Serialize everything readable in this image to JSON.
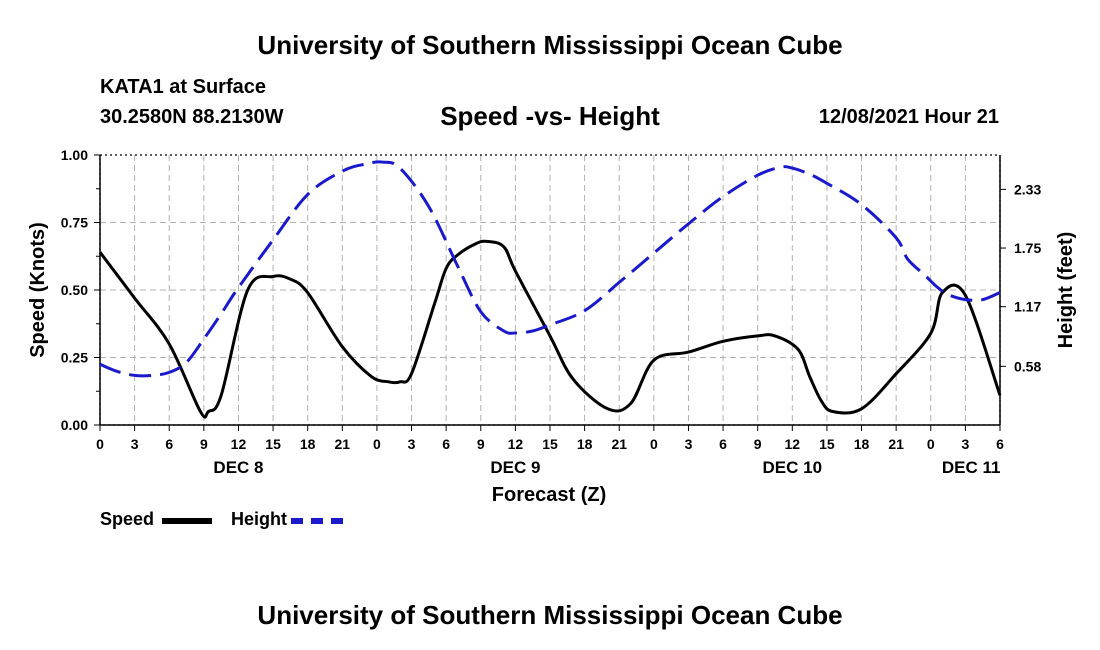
{
  "header": {
    "title": "University of Southern Mississippi Ocean Cube",
    "station": "KATA1 at Surface",
    "coordinates": "30.2580N  88.2130W",
    "subtitle": "Speed -vs- Height",
    "datetime": "12/08/2021 Hour 21"
  },
  "footer": {
    "title": "University of Southern Mississippi Ocean Cube"
  },
  "colors": {
    "speed": "#000000",
    "height": "#1a1acc",
    "grid": "#b0b0b0"
  },
  "legend": {
    "speed_label": "Speed",
    "height_label": "Height"
  },
  "chart_data": {
    "type": "line",
    "title": "Speed -vs- Height",
    "xlabel": "Forecast (Z)",
    "ylabel_left": "Speed (Knots)",
    "ylabel_right": "Height (feet)",
    "x_unit": "forecast hour from DEC 8 00Z",
    "xlim": [
      0,
      78
    ],
    "ylim_left": [
      0,
      1.0
    ],
    "ylim_right": [
      0,
      2.67
    ],
    "left_ticks": [
      0.0,
      0.25,
      0.5,
      0.75,
      1.0
    ],
    "left_tick_labels": [
      "0.00",
      "0.25",
      "0.50",
      "0.75",
      "1.00"
    ],
    "right_ticks": [
      0.58,
      1.17,
      1.75,
      2.33
    ],
    "right_tick_labels": [
      "0.58",
      "1.17",
      "1.75",
      "2.33"
    ],
    "x_ticks": [
      0,
      3,
      6,
      9,
      12,
      15,
      18,
      21,
      24,
      27,
      30,
      33,
      36,
      39,
      42,
      45,
      48,
      51,
      54,
      57,
      60,
      63,
      66,
      69,
      72,
      75,
      78
    ],
    "x_tick_labels": [
      "0",
      "3",
      "6",
      "9",
      "12",
      "15",
      "18",
      "21",
      "0",
      "3",
      "6",
      "9",
      "12",
      "15",
      "18",
      "21",
      "0",
      "3",
      "6",
      "9",
      "12",
      "15",
      "18",
      "21",
      "0",
      "3",
      "6"
    ],
    "day_labels": [
      {
        "label": "DEC 8",
        "x": 12
      },
      {
        "label": "DEC 9",
        "x": 36
      },
      {
        "label": "DEC 10",
        "x": 60
      },
      {
        "label": "DEC 11",
        "x": 75.5
      }
    ],
    "series": [
      {
        "name": "Speed",
        "axis": "left",
        "style": "solid",
        "x": [
          0,
          3,
          6,
          8.7,
          9.4,
          10.5,
          12.8,
          15,
          16.5,
          18,
          21,
          23.5,
          25,
          26,
          27,
          29,
          30,
          31,
          32.5,
          33.5,
          35,
          36,
          39,
          41,
          44,
          46,
          48,
          51,
          54,
          57,
          58.5,
          60.5,
          61.5,
          62.5,
          63.5,
          66,
          69,
          72,
          73,
          75,
          78
        ],
        "values": [
          0.64,
          0.47,
          0.3,
          0.05,
          0.05,
          0.11,
          0.5,
          0.55,
          0.54,
          0.49,
          0.29,
          0.18,
          0.16,
          0.16,
          0.19,
          0.45,
          0.58,
          0.63,
          0.67,
          0.68,
          0.66,
          0.57,
          0.33,
          0.17,
          0.06,
          0.08,
          0.24,
          0.27,
          0.31,
          0.33,
          0.33,
          0.28,
          0.18,
          0.09,
          0.05,
          0.06,
          0.19,
          0.34,
          0.49,
          0.48,
          0.11
        ]
      },
      {
        "name": "Height",
        "axis": "right",
        "style": "dashed",
        "x": [
          0,
          1.5,
          3,
          4.5,
          6,
          7.5,
          9,
          10.5,
          12,
          15,
          18,
          21,
          23,
          24.5,
          26,
          28.5,
          31,
          33,
          35,
          36,
          37.5,
          39,
          42,
          45,
          48,
          51,
          54,
          57,
          59,
          60,
          61.5,
          63,
          66,
          69,
          70,
          71.5,
          72.5,
          73.5,
          75,
          76.5,
          78
        ],
        "values": [
          0.6,
          0.53,
          0.49,
          0.49,
          0.52,
          0.62,
          0.85,
          1.1,
          1.36,
          1.83,
          2.28,
          2.51,
          2.58,
          2.6,
          2.54,
          2.16,
          1.57,
          1.12,
          0.93,
          0.91,
          0.93,
          0.99,
          1.13,
          1.41,
          1.7,
          1.99,
          2.26,
          2.47,
          2.55,
          2.54,
          2.48,
          2.39,
          2.18,
          1.85,
          1.64,
          1.48,
          1.37,
          1.29,
          1.24,
          1.24,
          1.31
        ]
      }
    ]
  }
}
